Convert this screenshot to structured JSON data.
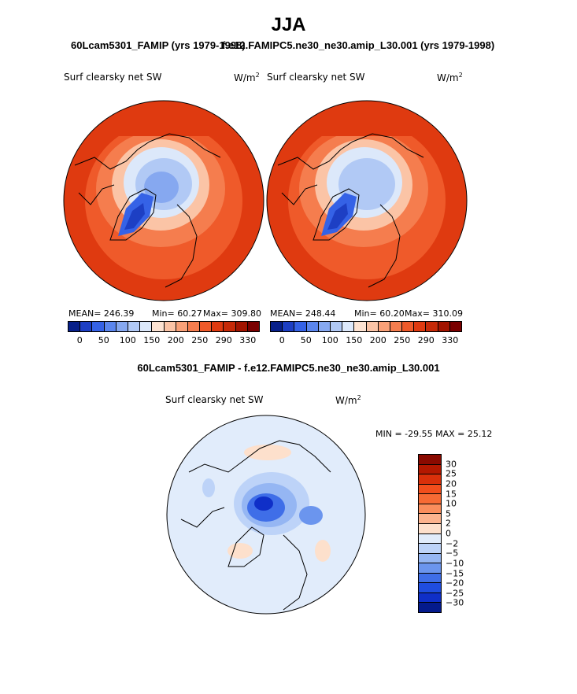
{
  "title": "JJA",
  "panel_left": {
    "subtitle": "60Lcam5301_FAMIP (yrs 1979-1998)",
    "variable": "Surf clearsky net SW",
    "units_base": "W/m",
    "units_exp": "2",
    "stats": {
      "mean": "MEAN= 246.39",
      "min": "Min=  60.27",
      "max": "Max= 309.80"
    }
  },
  "panel_right": {
    "subtitle": "f.e12.FAMIPC5.ne30_ne30.amip_L30.001 (yrs 1979-1998)",
    "variable": "Surf clearsky net SW",
    "units_base": "W/m",
    "units_exp": "2",
    "stats": {
      "mean": "MEAN= 248.44",
      "min": "Min=  60.20",
      "max": "Max= 310.09"
    }
  },
  "colorbar_top": {
    "colors": [
      "#08208a",
      "#1d3fc4",
      "#3562e6",
      "#5b86ee",
      "#86a8f0",
      "#b1c9f5",
      "#dce8fa",
      "#fde3d2",
      "#fbc4a6",
      "#f9a178",
      "#f57d4e",
      "#ef5a2a",
      "#df3a10",
      "#c62a08",
      "#a21400",
      "#7a0000"
    ],
    "labels": [
      "0",
      "50",
      "100",
      "150",
      "200",
      "250",
      "290",
      "330"
    ]
  },
  "diff": {
    "title": "60Lcam5301_FAMIP - f.e12.FAMIPC5.ne30_ne30.amip_L30.001",
    "variable": "Surf clearsky net SW",
    "units_base": "W/m",
    "units_exp": "2",
    "minmax": "MIN = -29.55 MAX =  25.12",
    "colorbar": {
      "colors": [
        "#8a0a00",
        "#b31800",
        "#d9300a",
        "#f24e1c",
        "#f76a34",
        "#fa8d5c",
        "#fcb38e",
        "#fde0cc",
        "#e1ecfb",
        "#bdd3f8",
        "#95b6f3",
        "#6b95ee",
        "#3f6ee8",
        "#1f4de0",
        "#0f2fc8",
        "#041a8c"
      ],
      "labels": [
        "30",
        "25",
        "20",
        "15",
        "10",
        "5",
        "2",
        "0",
        "−2",
        "−5",
        "−10",
        "−15",
        "−20",
        "−25",
        "−30"
      ]
    }
  }
}
